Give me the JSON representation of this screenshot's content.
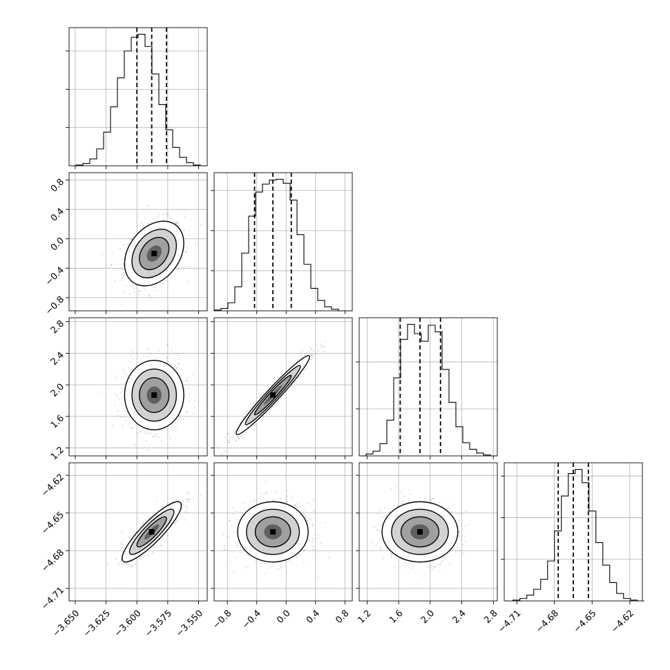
{
  "chart_data": {
    "type": "corner",
    "grid": true,
    "parameters": [
      {
        "range": [
          -3.655,
          -3.543
        ],
        "ticks": [
          -3.65,
          -3.625,
          -3.6,
          -3.575,
          -3.55
        ],
        "tick_labels": [
          "−3.650",
          "−3.625",
          "−3.600",
          "−3.575",
          "−3.550"
        ],
        "quantiles": [
          -3.6,
          -3.588,
          -3.576
        ],
        "hist_edges": [
          -3.655,
          -3.6494,
          -3.6438,
          -3.6382,
          -3.6326,
          -3.627,
          -3.6214,
          -3.6158,
          -3.6102,
          -3.6046,
          -3.599,
          -3.5934,
          -3.5878,
          -3.5822,
          -3.5766,
          -3.571,
          -3.5654,
          -3.5598,
          -3.5542,
          -3.5486,
          -3.543
        ],
        "hist_counts": [
          0,
          1,
          3,
          9,
          22,
          44,
          77,
          115,
          150,
          168,
          172,
          156,
          120,
          80,
          47,
          24,
          11,
          4,
          1,
          0
        ]
      },
      {
        "range": [
          -0.98,
          0.9
        ],
        "ticks": [
          -0.8,
          -0.4,
          0.0,
          0.4,
          0.8
        ],
        "tick_labels": [
          "−0.8",
          "−0.4",
          "0.0",
          "0.4",
          "0.8"
        ],
        "quantiles": [
          -0.43,
          -0.18,
          0.07
        ],
        "hist_edges": [
          -0.98,
          -0.886,
          -0.792,
          -0.698,
          -0.604,
          -0.51,
          -0.416,
          -0.322,
          -0.228,
          -0.134,
          -0.04,
          0.054,
          0.148,
          0.242,
          0.336,
          0.43,
          0.524,
          0.618,
          0.712,
          0.806,
          0.9
        ],
        "hist_counts": [
          1,
          3,
          10,
          30,
          72,
          118,
          148,
          158,
          163,
          164,
          159,
          138,
          95,
          58,
          28,
          13,
          5,
          2,
          0,
          0
        ]
      },
      {
        "range": [
          1.1,
          2.85
        ],
        "ticks": [
          1.2,
          1.6,
          2.0,
          2.4,
          2.8
        ],
        "tick_labels": [
          "1.2",
          "1.6",
          "2.0",
          "2.4",
          "2.8"
        ],
        "quantiles": [
          1.62,
          1.87,
          2.13
        ],
        "hist_edges": [
          1.1,
          1.1875,
          1.275,
          1.3625,
          1.45,
          1.5375,
          1.625,
          1.7125,
          1.8,
          1.8875,
          1.975,
          2.0625,
          2.15,
          2.2375,
          2.325,
          2.4125,
          2.5,
          2.5875,
          2.675,
          2.7625,
          2.85
        ],
        "hist_counts": [
          0,
          2,
          5,
          13,
          38,
          83,
          124,
          140,
          130,
          122,
          139,
          132,
          92,
          57,
          31,
          14,
          7,
          3,
          1,
          0
        ]
      },
      {
        "range": [
          -4.72,
          -4.61
        ],
        "ticks": [
          -4.71,
          -4.68,
          -4.65,
          -4.62
        ],
        "tick_labels": [
          "−4.71",
          "−4.68",
          "−4.65",
          "−4.62"
        ],
        "quantiles": [
          -4.677,
          -4.665,
          -4.653
        ],
        "hist_edges": [
          -4.7185,
          -4.713,
          -4.7075,
          -4.702,
          -4.6965,
          -4.691,
          -4.6855,
          -4.68,
          -4.6745,
          -4.669,
          -4.6635,
          -4.658,
          -4.6525,
          -4.647,
          -4.6415,
          -4.636,
          -4.6305,
          -4.625,
          -4.6195,
          -4.614,
          -4.6085
        ],
        "hist_counts": [
          0,
          1,
          3,
          7,
          14,
          26,
          48,
          84,
          126,
          153,
          158,
          142,
          108,
          70,
          43,
          22,
          9,
          3,
          1,
          0
        ]
      }
    ],
    "pairs": [
      {
        "row": 1,
        "col": 0,
        "mean": [
          -3.586,
          -0.2
        ],
        "sd": [
          0.012,
          0.22
        ],
        "corr": 0.32
      },
      {
        "row": 2,
        "col": 0,
        "mean": [
          -3.586,
          1.87
        ],
        "sd": [
          0.012,
          0.22
        ],
        "corr": 0.0
      },
      {
        "row": 2,
        "col": 1,
        "mean": [
          -0.18,
          1.87
        ],
        "sd": [
          0.25,
          0.25
        ],
        "corr": 0.97
      },
      {
        "row": 3,
        "col": 0,
        "mean": [
          -3.588,
          -4.665
        ],
        "sd": [
          0.012,
          0.012
        ],
        "corr": 0.88
      },
      {
        "row": 3,
        "col": 1,
        "mean": [
          -0.18,
          -4.665
        ],
        "sd": [
          0.24,
          0.012
        ],
        "corr": 0.0
      },
      {
        "row": 3,
        "col": 2,
        "mean": [
          1.87,
          -4.665
        ],
        "sd": [
          0.24,
          0.012
        ],
        "corr": 0.0
      }
    ]
  }
}
